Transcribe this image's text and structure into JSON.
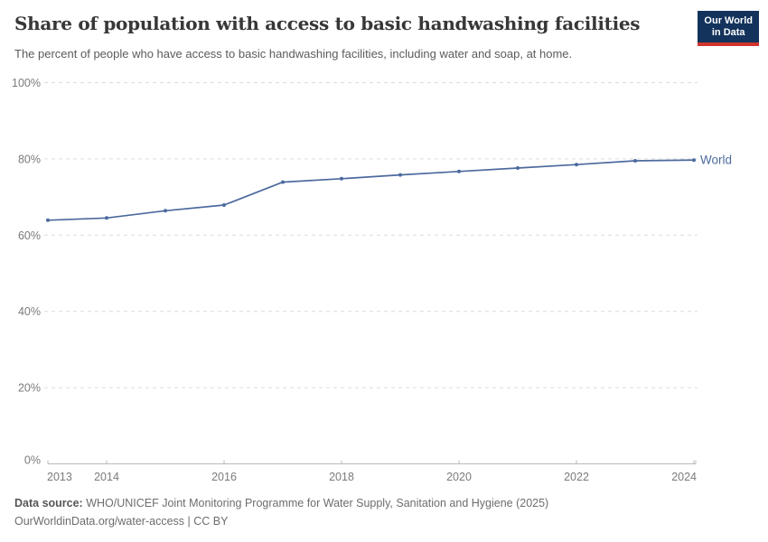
{
  "header": {
    "title": "Share of population with access to basic handwashing facilities",
    "subtitle": "The percent of people who have access to basic handwashing facilities, including water and soap, at home.",
    "logo": {
      "line1": "Our World",
      "line2": "in Data"
    }
  },
  "chart_data": {
    "type": "line",
    "title": "Share of population with access to basic handwashing facilities",
    "subtitle": "The percent of people who have access to basic handwashing facilities, including water and soap, at home.",
    "xlabel": "",
    "ylabel": "",
    "xlim": [
      2013,
      2024
    ],
    "ylim": [
      0,
      100
    ],
    "grid": "horizontal-dashed",
    "legend_position": "end-of-line-label",
    "x": [
      2013,
      2014,
      2015,
      2016,
      2017,
      2018,
      2019,
      2020,
      2021,
      2022,
      2023,
      2024
    ],
    "series": [
      {
        "name": "World",
        "color": "#4c6a9e",
        "values": [
          63.9,
          64.5,
          66.4,
          67.9,
          73.9,
          74.8,
          75.8,
          76.7,
          77.6,
          78.5,
          79.5,
          79.7
        ]
      }
    ],
    "x_axis": {
      "labeled_ticks": [
        2013,
        2014,
        2016,
        2018,
        2020,
        2022,
        2024
      ],
      "tick_labels": [
        "2013",
        "2014",
        "2016",
        "2018",
        "2020",
        "2022",
        "2024"
      ]
    },
    "y_axis": {
      "ticks": [
        0,
        20,
        40,
        60,
        80,
        100
      ],
      "tick_labels": [
        "0%",
        "20%",
        "40%",
        "60%",
        "80%",
        "100%"
      ]
    }
  },
  "footer": {
    "source_label": "Data source:",
    "source_text": " WHO/UNICEF Joint Monitoring Programme for Water Supply, Sanitation and Hygiene (2025)",
    "attribution": "OurWorldinData.org/water-access | CC BY"
  },
  "colors": {
    "line": "#4c6a9e",
    "series_label": "#4c6a9e",
    "gridline": "#dcdcdc",
    "axis": "#b9b9b9",
    "tick_text": "#7a7a7a",
    "title_text": "#373737",
    "logo_bg": "#13335c",
    "logo_stripe": "#d0342c",
    "background": "#ffffff"
  }
}
